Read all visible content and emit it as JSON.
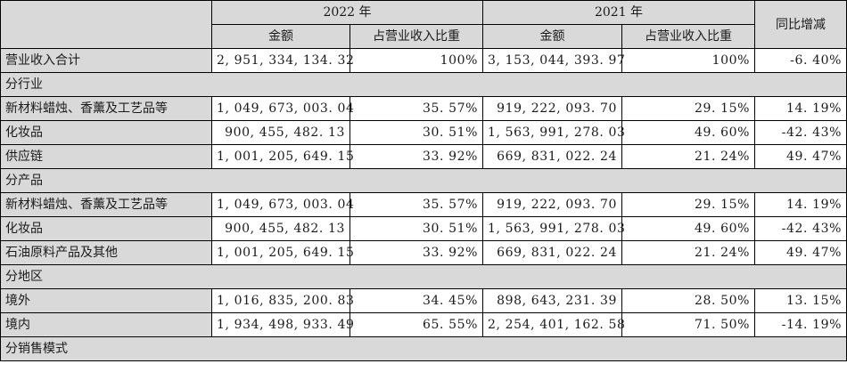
{
  "header": {
    "year_2022": "2022 年",
    "year_2021": "2021 年",
    "yoy": "同比增减",
    "amount": "金额",
    "share": "占营业收入比重"
  },
  "total": {
    "label": "营业收入合计",
    "amt_2022": "2, 951, 334, 134. 32",
    "pct_2022": "100%",
    "amt_2021": "3, 153, 044, 393. 97",
    "pct_2021": "100%",
    "yoy": "-6. 40%"
  },
  "sections": [
    {
      "title": "分行业",
      "rows": [
        {
          "label": "新材料蜡烛、香薰及工艺品等",
          "amt_2022": "1, 049, 673, 003. 04",
          "pct_2022": "35. 57%",
          "amt_2021": "919, 222, 093. 70",
          "pct_2021": "29. 15%",
          "yoy": "14. 19%"
        },
        {
          "label": "化妆品",
          "amt_2022": "900, 455, 482. 13",
          "pct_2022": "30. 51%",
          "amt_2021": "1, 563, 991, 278. 03",
          "pct_2021": "49. 60%",
          "yoy": "-42. 43%"
        },
        {
          "label": "供应链",
          "amt_2022": "1, 001, 205, 649. 15",
          "pct_2022": "33. 92%",
          "amt_2021": "669, 831, 022. 24",
          "pct_2021": "21. 24%",
          "yoy": "49. 47%"
        }
      ]
    },
    {
      "title": "分产品",
      "rows": [
        {
          "label": "新材料蜡烛、香薰及工艺品等",
          "amt_2022": "1, 049, 673, 003. 04",
          "pct_2022": "35. 57%",
          "amt_2021": "919, 222, 093. 70",
          "pct_2021": "29. 15%",
          "yoy": "14. 19%"
        },
        {
          "label": "化妆品",
          "amt_2022": "900, 455, 482. 13",
          "pct_2022": "30. 51%",
          "amt_2021": "1, 563, 991, 278. 03",
          "pct_2021": "49. 60%",
          "yoy": "-42. 43%"
        },
        {
          "label": "石油原料产品及其他",
          "amt_2022": "1, 001, 205, 649. 15",
          "pct_2022": "33. 92%",
          "amt_2021": "669, 831, 022. 24",
          "pct_2021": "21. 24%",
          "yoy": "49. 47%"
        }
      ]
    },
    {
      "title": "分地区",
      "rows": [
        {
          "label": "境外",
          "amt_2022": "1, 016, 835, 200. 83",
          "pct_2022": "34. 45%",
          "amt_2021": "898, 643, 231. 39",
          "pct_2021": "28. 50%",
          "yoy": "13. 15%"
        },
        {
          "label": "境内",
          "amt_2022": "1, 934, 498, 933. 49",
          "pct_2022": "65. 55%",
          "amt_2021": "2, 254, 401, 162. 58",
          "pct_2021": "71. 50%",
          "yoy": "-14. 19%"
        }
      ]
    },
    {
      "title": "分销售模式",
      "rows": []
    }
  ]
}
